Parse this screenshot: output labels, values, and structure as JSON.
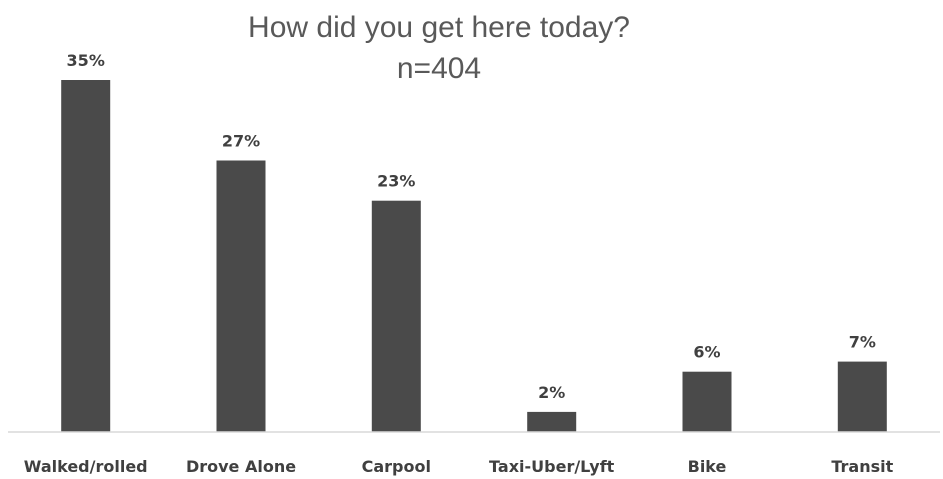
{
  "chart_data": {
    "type": "bar",
    "title": "How did you get here today?",
    "subtitle": "n=404",
    "categories": [
      "Walked/rolled",
      "Drove Alone",
      "Carpool",
      "Taxi-Uber/Lyft",
      "Bike",
      "Transit"
    ],
    "values": [
      35,
      27,
      23,
      2,
      6,
      7
    ],
    "value_labels": [
      "35%",
      "27%",
      "23%",
      "2%",
      "6%",
      "7%"
    ],
    "value_unit": "%",
    "ylim": [
      0,
      35
    ],
    "grid": false,
    "legend": "none",
    "bar_color": "#4a4a4a",
    "axis_color": "#d9d9d9",
    "text_color": "#404040"
  }
}
